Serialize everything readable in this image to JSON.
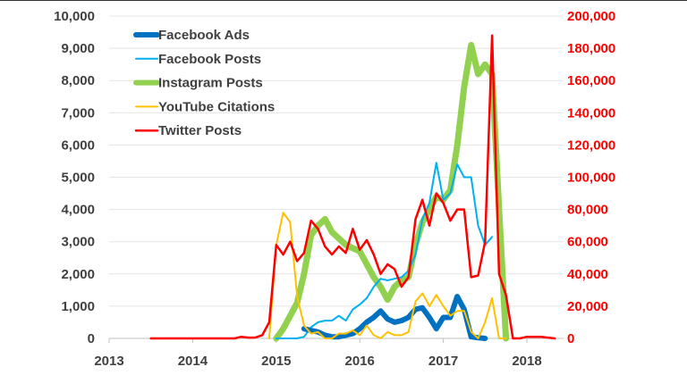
{
  "chart_data": {
    "type": "line",
    "title": "",
    "xlabel": "",
    "ylabel_left": "",
    "ylabel_right": "",
    "xlim": [
      2013,
      2018.5
    ],
    "ylim_left": [
      0,
      10000
    ],
    "ylim_right": [
      0,
      200000
    ],
    "x_ticks": [
      "2013",
      "2014",
      "2015",
      "2016",
      "2017",
      "2018"
    ],
    "y_ticks_left": [
      "0",
      "1,000",
      "2,000",
      "3,000",
      "4,000",
      "5,000",
      "6,000",
      "7,000",
      "8,000",
      "9,000",
      "10,000"
    ],
    "y_ticks_right": [
      "0",
      "20,000",
      "40,000",
      "60,000",
      "80,000",
      "100,000",
      "120,000",
      "140,000",
      "160,000",
      "180,000",
      "200,000"
    ],
    "grid": true,
    "legend_position": "top-left",
    "step_years": 0.08333,
    "series": [
      {
        "name": "Facebook Ads",
        "axis": "left",
        "color": "#0070C0",
        "width": 6,
        "start": 2015.333,
        "values": [
          300,
          250,
          200,
          100,
          50,
          50,
          100,
          150,
          300,
          500,
          650,
          850,
          600,
          500,
          550,
          650,
          900,
          950,
          650,
          300,
          650,
          650,
          1300,
          900,
          50,
          20,
          0
        ]
      },
      {
        "name": "Facebook Posts",
        "axis": "left",
        "color": "#00B0F0",
        "width": 2,
        "start": 2015.0,
        "values": [
          0,
          0,
          0,
          0,
          50,
          350,
          500,
          550,
          550,
          700,
          550,
          900,
          1050,
          1250,
          1600,
          1850,
          1800,
          1850,
          1900,
          2100,
          2600,
          3700,
          4200,
          5450,
          4300,
          4500,
          5400,
          5000,
          5000,
          3500,
          2900,
          3150
        ]
      },
      {
        "name": "Instagram Posts",
        "axis": "left",
        "color": "#92D050",
        "width": 7,
        "start": 2015.0,
        "values": [
          0,
          300,
          700,
          1100,
          2000,
          3200,
          3500,
          3700,
          3300,
          3100,
          2900,
          2800,
          2700,
          2300,
          1900,
          1600,
          1200,
          1600,
          1800,
          1900,
          2900,
          3600,
          4000,
          4400,
          4300,
          4600,
          6000,
          7800,
          9100,
          8200,
          8500,
          8200,
          4000,
          0
        ]
      },
      {
        "name": "YouTube Citations",
        "axis": "left",
        "color": "#FFC000",
        "width": 2,
        "start": 2014.917,
        "values": [
          0,
          2900,
          3900,
          3600,
          1300,
          400,
          150,
          200,
          0,
          0,
          150,
          150,
          250,
          100,
          400,
          100,
          0,
          200,
          100,
          100,
          200,
          1150,
          1400,
          1000,
          1350,
          1000,
          700,
          850,
          850,
          200,
          0,
          500,
          1250,
          0,
          0
        ]
      },
      {
        "name": "Twitter Posts",
        "axis": "right",
        "color": "#FF0000",
        "width": 2.5,
        "start": 2013.5,
        "values": [
          0,
          0,
          0,
          0,
          0,
          0,
          0,
          0,
          0,
          0,
          0,
          0,
          0,
          1000,
          500,
          500,
          2000,
          10000,
          58000,
          52000,
          60000,
          48000,
          53000,
          73000,
          68000,
          57000,
          52000,
          57000,
          53000,
          68000,
          55000,
          61000,
          52000,
          40000,
          46000,
          43000,
          32000,
          38000,
          74000,
          86000,
          70000,
          90000,
          84000,
          73000,
          80000,
          80000,
          38000,
          39000,
          60000,
          188000,
          40000,
          27000,
          0,
          0,
          1000,
          1000,
          1000,
          500,
          0
        ]
      }
    ]
  }
}
